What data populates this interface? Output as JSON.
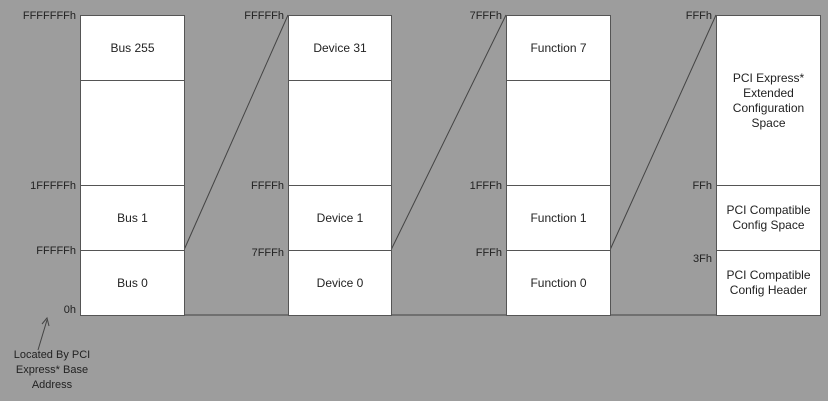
{
  "columns": [
    {
      "addresses": [
        "FFFFFFFh",
        "1FFFFFh",
        "FFFFFh",
        "0h"
      ],
      "blocks": [
        "Bus 255",
        "Bus 1",
        "Bus 0"
      ]
    },
    {
      "addresses": [
        "FFFFFh",
        "FFFFh",
        "7FFFh"
      ],
      "blocks": [
        "Device 31",
        "Device 1",
        "Device 0"
      ]
    },
    {
      "addresses": [
        "7FFFh",
        "1FFFh",
        "FFFh"
      ],
      "blocks": [
        "Function 7",
        "Function 1",
        "Function 0"
      ]
    },
    {
      "addresses": [
        "FFFh",
        "FFh",
        "3Fh"
      ],
      "blocks": [
        "PCI Express* Extended Configuration Space",
        "PCI Compatible Config Space",
        "PCI Compatible Config Header"
      ]
    }
  ],
  "note": "Located By PCI Express* Base Address"
}
